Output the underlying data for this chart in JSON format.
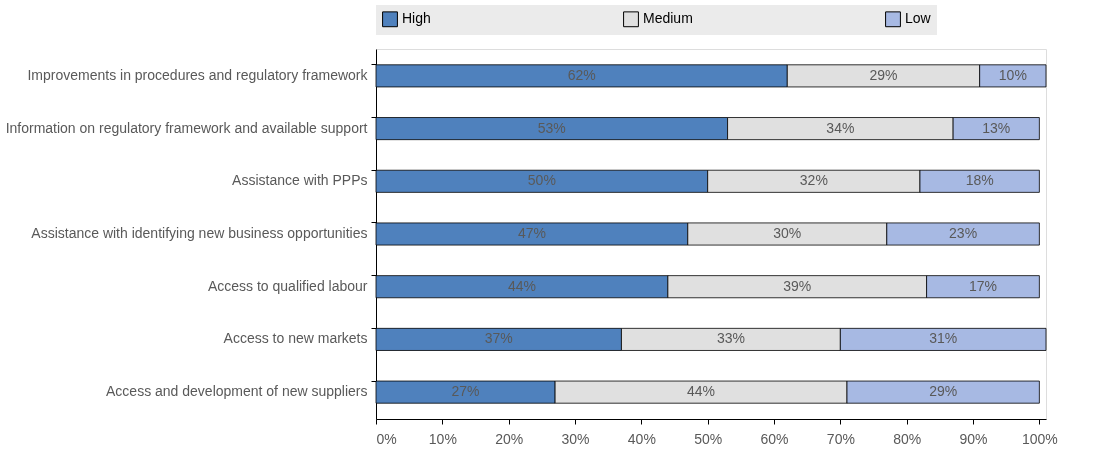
{
  "chart_data": {
    "type": "bar",
    "orientation": "horizontal",
    "stacked": true,
    "categories": [
      "Improvements in procedures and regulatory framework",
      "Information on regulatory framework and available support",
      "Assistance with PPPs",
      "Assistance with identifying new business opportunities",
      "Access to qualified labour",
      "Access to new markets",
      "Access and development of new suppliers"
    ],
    "series": [
      {
        "name": "High",
        "color": "#4f81bd",
        "values": [
          62,
          53,
          50,
          47,
          44,
          37,
          27
        ],
        "value_labels": [
          "62%",
          "53%",
          "50%",
          "47%",
          "44%",
          "37%",
          "27%"
        ]
      },
      {
        "name": "Medium",
        "color": "#e0e0e0",
        "values": [
          29,
          34,
          32,
          30,
          39,
          33,
          44
        ],
        "value_labels": [
          "29%",
          "34%",
          "32%",
          "30%",
          "39%",
          "33%",
          "44%"
        ]
      },
      {
        "name": "Low",
        "color": "#a7b9e3",
        "values": [
          10,
          13,
          18,
          23,
          17,
          31,
          29
        ],
        "value_labels": [
          "10%",
          "13%",
          "18%",
          "23%",
          "17%",
          "31%",
          "29%"
        ]
      }
    ],
    "xlim": [
      0,
      101
    ],
    "xticks": [
      {
        "value": 0,
        "label": "0%"
      },
      {
        "value": 10,
        "label": "10%"
      },
      {
        "value": 20,
        "label": "20%"
      },
      {
        "value": 30,
        "label": "30%"
      },
      {
        "value": 40,
        "label": "40%"
      },
      {
        "value": 50,
        "label": "50%"
      },
      {
        "value": 60,
        "label": "60%"
      },
      {
        "value": 70,
        "label": "70%"
      },
      {
        "value": 80,
        "label": "80%"
      },
      {
        "value": 90,
        "label": "90%"
      },
      {
        "value": 100,
        "label": "100%"
      }
    ],
    "grid": false,
    "legend": "top"
  }
}
